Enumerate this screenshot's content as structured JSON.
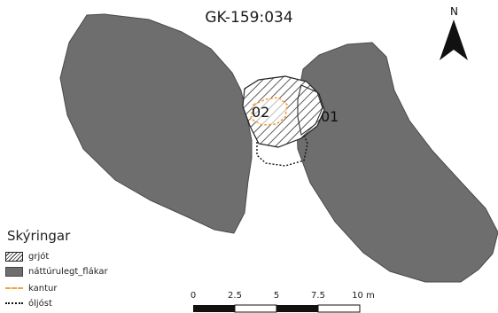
{
  "title": "GK-159:034",
  "north_arrow": {
    "label": "N",
    "icon": "north-arrow-icon"
  },
  "parcel_labels": {
    "inner": "02",
    "outer": "01"
  },
  "legend": {
    "title": "Skýringar",
    "items": [
      {
        "label": "grjót",
        "symbol": "hatched-fill"
      },
      {
        "label": "náttúrulegt_flákar",
        "symbol": "gray-fill"
      },
      {
        "label": "kantur",
        "symbol": "orange-dashed-line"
      },
      {
        "label": "óljóst",
        "symbol": "black-dotted-line"
      }
    ]
  },
  "scalebar": {
    "labels": [
      "0",
      "2.5",
      "5",
      "7.5",
      "10 m"
    ]
  },
  "colors": {
    "natural_area_fill": "#6e6e6e",
    "natural_area_stroke": "#4a4a4a",
    "rock_hatch": "#333333",
    "edge_line": "#f5a041",
    "uncertain_line": "#111111"
  }
}
